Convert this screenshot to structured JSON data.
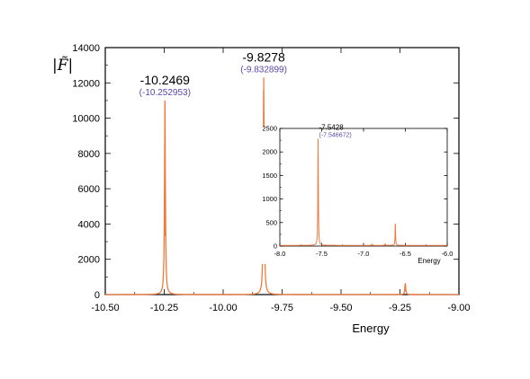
{
  "chart_data": [
    {
      "type": "line",
      "xlabel": "Energy",
      "ylabel": "|F̃|",
      "xlim": [
        -10.5,
        -9.0
      ],
      "ylim": [
        0,
        14000
      ],
      "x_ticks": [
        "-10.50",
        "-10.25",
        "-10.00",
        "-9.75",
        "-9.50",
        "-9.25",
        "-9.00"
      ],
      "y_ticks": [
        "0",
        "2000",
        "4000",
        "6000",
        "8000",
        "10000",
        "12000",
        "14000"
      ],
      "color": "#f07a3c",
      "series": [
        {
          "peaks": [
            {
              "x": -10.2469,
              "y": 11000
            },
            {
              "x": -9.8278,
              "y": 12300
            },
            {
              "x": -9.2275,
              "y": 650
            }
          ],
          "baseline": 0
        }
      ],
      "annotations": [
        {
          "x": -10.2469,
          "label": "-10.2469",
          "ref": "(-10.252953)"
        },
        {
          "x": -9.8278,
          "label": "-9.8278",
          "ref": "(-9.832899)"
        }
      ]
    },
    {
      "type": "line",
      "xlabel": "Energy",
      "xlim": [
        -8.0,
        -6.0
      ],
      "ylim": [
        0,
        2500
      ],
      "x_ticks": [
        "-8.0",
        "-7.5",
        "-7.0",
        "-6.5",
        "-6.0"
      ],
      "y_ticks": [
        "0",
        "500",
        "1000",
        "1500",
        "2000",
        "2500"
      ],
      "color": "#f07a3c",
      "series": [
        {
          "peaks": [
            {
              "x": -7.5428,
              "y": 2280
            },
            {
              "x": -6.62,
              "y": 470
            },
            {
              "x": -6.9,
              "y": 40
            },
            {
              "x": -6.74,
              "y": 45
            }
          ],
          "baseline": 15
        }
      ],
      "annotations": [
        {
          "x": -7.5428,
          "label": "-7.5428",
          "ref": "(-7.546672)"
        }
      ]
    }
  ]
}
